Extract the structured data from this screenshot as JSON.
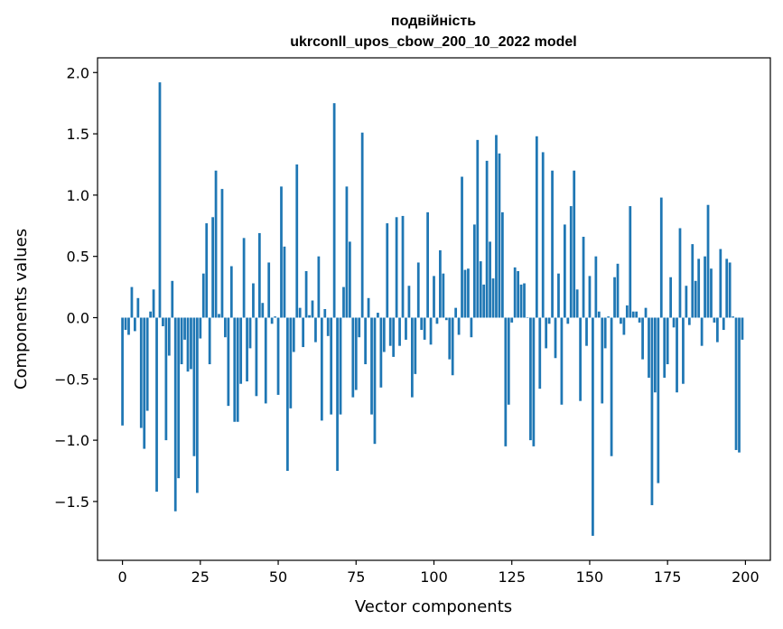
{
  "chart_data": {
    "type": "bar",
    "title": "подвійність",
    "subtitle": "ukrconll_upos_cbow_200_10_2022 model",
    "xlabel": "Vector components",
    "ylabel": "Components values",
    "xlim": [
      -8,
      208
    ],
    "ylim": [
      -1.98,
      2.12
    ],
    "xticks": [
      0,
      25,
      50,
      75,
      100,
      125,
      150,
      175,
      200
    ],
    "yticks": [
      -1.5,
      -1.0,
      -0.5,
      0.0,
      0.5,
      1.0,
      1.5,
      2.0
    ],
    "ytick_labels": [
      "−1.5",
      "−1.0",
      "−0.5",
      "0.0",
      "0.5",
      "1.0",
      "1.5",
      "2.0"
    ],
    "bar_color": "#1f77b4",
    "grid": false,
    "x": [
      0,
      1,
      2,
      3,
      4,
      5,
      6,
      7,
      8,
      9,
      10,
      11,
      12,
      13,
      14,
      15,
      16,
      17,
      18,
      19,
      20,
      21,
      22,
      23,
      24,
      25,
      26,
      27,
      28,
      29,
      30,
      31,
      32,
      33,
      34,
      35,
      36,
      37,
      38,
      39,
      40,
      41,
      42,
      43,
      44,
      45,
      46,
      47,
      48,
      49,
      50,
      51,
      52,
      53,
      54,
      55,
      56,
      57,
      58,
      59,
      60,
      61,
      62,
      63,
      64,
      65,
      66,
      67,
      68,
      69,
      70,
      71,
      72,
      73,
      74,
      75,
      76,
      77,
      78,
      79,
      80,
      81,
      82,
      83,
      84,
      85,
      86,
      87,
      88,
      89,
      90,
      91,
      92,
      93,
      94,
      95,
      96,
      97,
      98,
      99,
      100,
      101,
      102,
      103,
      104,
      105,
      106,
      107,
      108,
      109,
      110,
      111,
      112,
      113,
      114,
      115,
      116,
      117,
      118,
      119,
      120,
      121,
      122,
      123,
      124,
      125,
      126,
      127,
      128,
      129,
      130,
      131,
      132,
      133,
      134,
      135,
      136,
      137,
      138,
      139,
      140,
      141,
      142,
      143,
      144,
      145,
      146,
      147,
      148,
      149,
      150,
      151,
      152,
      153,
      154,
      155,
      156,
      157,
      158,
      159,
      160,
      161,
      162,
      163,
      164,
      165,
      166,
      167,
      168,
      169,
      170,
      171,
      172,
      173,
      174,
      175,
      176,
      177,
      178,
      179,
      180,
      181,
      182,
      183,
      184,
      185,
      186,
      187,
      188,
      189,
      190,
      191,
      192,
      193,
      194,
      195,
      196,
      197,
      198,
      199
    ],
    "values": [
      -0.88,
      -0.1,
      -0.14,
      0.25,
      -0.11,
      0.16,
      -0.9,
      -1.07,
      -0.76,
      0.05,
      0.23,
      -1.42,
      1.92,
      -0.07,
      -1.0,
      -0.31,
      0.3,
      -1.58,
      -1.31,
      -0.38,
      -0.18,
      -0.44,
      -0.42,
      -1.13,
      -1.43,
      -0.17,
      0.36,
      0.77,
      -0.38,
      0.82,
      1.2,
      0.03,
      1.05,
      -0.16,
      -0.72,
      0.42,
      -0.85,
      -0.85,
      -0.54,
      0.65,
      -0.52,
      -0.25,
      0.28,
      -0.64,
      0.69,
      0.12,
      -0.7,
      0.45,
      -0.05,
      0.01,
      -0.63,
      1.07,
      0.58,
      -1.25,
      -0.74,
      -0.28,
      1.25,
      0.08,
      -0.24,
      0.38,
      0.02,
      0.14,
      -0.2,
      0.5,
      -0.84,
      0.07,
      -0.15,
      -0.79,
      1.75,
      -1.25,
      -0.79,
      0.25,
      1.07,
      0.62,
      -0.65,
      -0.59,
      -0.16,
      1.51,
      -0.38,
      0.16,
      -0.79,
      -1.03,
      0.04,
      -0.57,
      -0.28,
      0.77,
      -0.23,
      -0.32,
      0.82,
      -0.23,
      0.83,
      -0.18,
      0.26,
      -0.65,
      -0.46,
      0.45,
      -0.1,
      -0.18,
      0.86,
      -0.22,
      0.34,
      -0.05,
      0.55,
      0.36,
      -0.02,
      -0.34,
      -0.47,
      0.08,
      -0.14,
      1.15,
      0.39,
      0.4,
      -0.16,
      0.76,
      1.45,
      0.46,
      0.27,
      1.28,
      0.62,
      0.32,
      1.49,
      1.34,
      0.86,
      -1.05,
      -0.71,
      -0.04,
      0.41,
      0.38,
      0.27,
      0.28,
      0.0,
      -1.0,
      -1.05,
      1.48,
      -0.58,
      1.35,
      -0.25,
      -0.05,
      1.2,
      -0.33,
      0.36,
      -0.71,
      0.76,
      -0.05,
      0.91,
      1.2,
      0.23,
      -0.68,
      0.66,
      -0.23,
      0.34,
      -1.78,
      0.5,
      0.05,
      -0.7,
      -0.25,
      0.01,
      -1.13,
      0.33,
      0.44,
      -0.05,
      -0.14,
      0.1,
      0.91,
      0.05,
      0.05,
      -0.04,
      -0.34,
      0.08,
      -0.49,
      -1.53,
      -0.61,
      -1.35,
      0.98,
      -0.49,
      -0.38,
      0.33,
      -0.08,
      -0.61,
      0.73,
      -0.54,
      0.26,
      -0.06,
      0.6,
      0.3,
      0.48,
      -0.23,
      0.5,
      0.92,
      0.4,
      -0.04,
      -0.2,
      0.56,
      -0.1,
      0.48,
      0.45,
      0.01,
      -1.08,
      -1.1,
      -0.18
    ]
  }
}
